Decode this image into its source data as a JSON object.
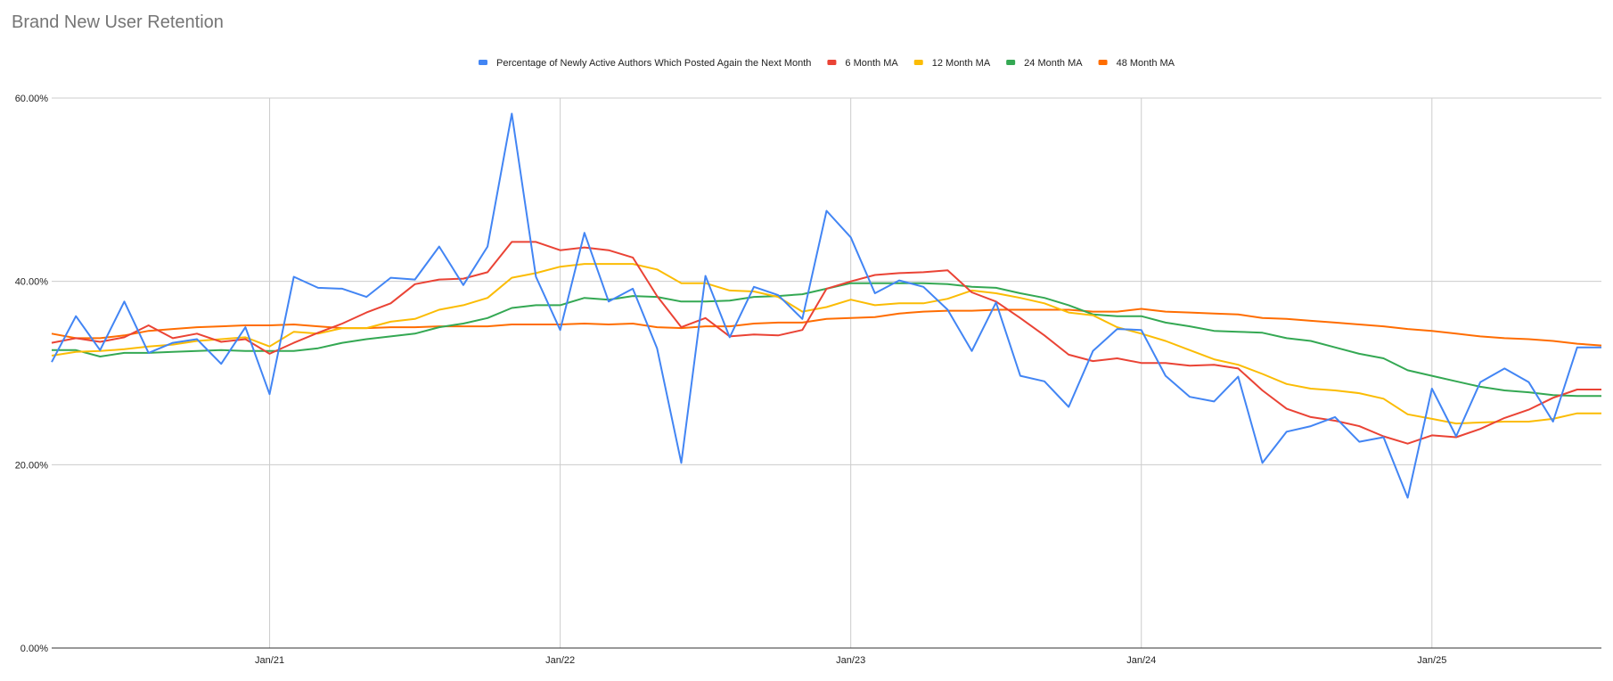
{
  "chart_data": {
    "type": "line",
    "title": "Brand New User Retention",
    "xlabel": "",
    "ylabel": "",
    "ylim": [
      0,
      0.6
    ],
    "y_ticks": [
      "0.00%",
      "20.00%",
      "40.00%",
      "60.00%"
    ],
    "x_ticks": [
      {
        "label": "Jan/21",
        "date": "2021-01-01"
      },
      {
        "label": "Jan/22",
        "date": "2022-01-01"
      },
      {
        "label": "Jan/23",
        "date": "2023-01-01"
      },
      {
        "label": "Jan/24",
        "date": "2024-01-01"
      },
      {
        "label": "Jan/25",
        "date": "2025-01-01"
      }
    ],
    "x_start": "2020-04",
    "x_end": "2025-08",
    "grid": true,
    "legend_position": "top",
    "x": [
      "2020-04",
      "2020-05",
      "2020-06",
      "2020-07",
      "2020-08",
      "2020-09",
      "2020-10",
      "2020-11",
      "2020-12",
      "2021-01",
      "2021-02",
      "2021-03",
      "2021-04",
      "2021-05",
      "2021-06",
      "2021-07",
      "2021-08",
      "2021-09",
      "2021-10",
      "2021-11",
      "2021-12",
      "2022-01",
      "2022-02",
      "2022-03",
      "2022-04",
      "2022-05",
      "2022-06",
      "2022-07",
      "2022-08",
      "2022-09",
      "2022-10",
      "2022-11",
      "2022-12",
      "2023-01",
      "2023-02",
      "2023-03",
      "2023-04",
      "2023-05",
      "2023-06",
      "2023-07",
      "2023-08",
      "2023-09",
      "2023-10",
      "2023-11",
      "2023-12",
      "2024-01",
      "2024-02",
      "2024-03",
      "2024-04",
      "2024-05",
      "2024-06",
      "2024-07",
      "2024-08",
      "2024-09",
      "2024-10",
      "2024-11",
      "2024-12",
      "2025-01",
      "2025-02",
      "2025-03",
      "2025-04",
      "2025-05",
      "2025-06",
      "2025-07",
      "2025-08"
    ],
    "series": [
      {
        "name": "Percentage of Newly Active Authors Which Posted Again the Next Month",
        "color": "#4285f4",
        "values": [
          0.312,
          0.362,
          0.325,
          0.378,
          0.322,
          0.333,
          0.337,
          0.31,
          0.35,
          0.277,
          0.405,
          0.393,
          0.392,
          0.383,
          0.404,
          0.402,
          0.438,
          0.396,
          0.438,
          0.583,
          0.405,
          0.347,
          0.453,
          0.378,
          0.392,
          0.327,
          0.202,
          0.406,
          0.339,
          0.394,
          0.385,
          0.359,
          0.477,
          0.448,
          0.387,
          0.401,
          0.394,
          0.369,
          0.324,
          0.377,
          0.297,
          0.291,
          0.263,
          0.324,
          0.348,
          0.347,
          0.297,
          0.274,
          0.269,
          0.296,
          0.202,
          0.236,
          0.242,
          0.252,
          0.225,
          0.23,
          0.164,
          0.283,
          0.231,
          0.29,
          0.305,
          0.29,
          0.247,
          0.328,
          0.328
        ]
      },
      {
        "name": "6 Month MA",
        "color": "#ea4335",
        "values": [
          0.333,
          0.338,
          0.334,
          0.339,
          0.352,
          0.338,
          0.343,
          0.334,
          0.337,
          0.321,
          0.333,
          0.344,
          0.354,
          0.366,
          0.376,
          0.397,
          0.402,
          0.403,
          0.41,
          0.443,
          0.443,
          0.434,
          0.437,
          0.434,
          0.426,
          0.384,
          0.35,
          0.36,
          0.34,
          0.342,
          0.341,
          0.347,
          0.392,
          0.4,
          0.407,
          0.409,
          0.41,
          0.412,
          0.388,
          0.378,
          0.36,
          0.341,
          0.32,
          0.313,
          0.316,
          0.311,
          0.311,
          0.308,
          0.309,
          0.305,
          0.281,
          0.261,
          0.252,
          0.248,
          0.242,
          0.231,
          0.223,
          0.232,
          0.23,
          0.239,
          0.251,
          0.26,
          0.273,
          0.282,
          0.282
        ]
      },
      {
        "name": "12 Month MA",
        "color": "#fbbc04",
        "values": [
          0.319,
          0.323,
          0.324,
          0.326,
          0.329,
          0.331,
          0.335,
          0.337,
          0.339,
          0.329,
          0.345,
          0.343,
          0.349,
          0.349,
          0.356,
          0.359,
          0.369,
          0.374,
          0.382,
          0.404,
          0.409,
          0.416,
          0.419,
          0.419,
          0.419,
          0.413,
          0.398,
          0.398,
          0.39,
          0.389,
          0.383,
          0.367,
          0.372,
          0.38,
          0.374,
          0.376,
          0.376,
          0.381,
          0.39,
          0.387,
          0.382,
          0.376,
          0.366,
          0.363,
          0.35,
          0.343,
          0.335,
          0.325,
          0.315,
          0.309,
          0.299,
          0.288,
          0.283,
          0.281,
          0.278,
          0.272,
          0.255,
          0.25,
          0.245,
          0.246,
          0.247,
          0.247,
          0.25,
          0.256,
          0.256
        ]
      },
      {
        "name": "24 Month MA",
        "color": "#34a853",
        "values": [
          0.325,
          0.325,
          0.318,
          0.322,
          0.322,
          0.323,
          0.324,
          0.325,
          0.324,
          0.324,
          0.324,
          0.327,
          0.333,
          0.337,
          0.34,
          0.343,
          0.35,
          0.354,
          0.36,
          0.371,
          0.374,
          0.374,
          0.382,
          0.38,
          0.384,
          0.383,
          0.378,
          0.378,
          0.379,
          0.383,
          0.384,
          0.386,
          0.392,
          0.398,
          0.398,
          0.398,
          0.398,
          0.397,
          0.394,
          0.393,
          0.387,
          0.382,
          0.374,
          0.364,
          0.362,
          0.362,
          0.355,
          0.351,
          0.346,
          0.345,
          0.344,
          0.338,
          0.335,
          0.328,
          0.321,
          0.316,
          0.303,
          0.297,
          0.291,
          0.285,
          0.281,
          0.279,
          0.276,
          0.275,
          0.275
        ]
      },
      {
        "name": "48 Month MA",
        "color": "#ff6d01",
        "values": [
          0.343,
          0.338,
          0.338,
          0.341,
          0.346,
          0.348,
          0.35,
          0.351,
          0.352,
          0.352,
          0.353,
          0.351,
          0.349,
          0.349,
          0.35,
          0.35,
          0.351,
          0.351,
          0.351,
          0.353,
          0.353,
          0.353,
          0.354,
          0.353,
          0.354,
          0.35,
          0.349,
          0.351,
          0.351,
          0.354,
          0.355,
          0.355,
          0.359,
          0.36,
          0.361,
          0.365,
          0.367,
          0.368,
          0.368,
          0.369,
          0.369,
          0.369,
          0.369,
          0.367,
          0.367,
          0.37,
          0.367,
          0.366,
          0.365,
          0.364,
          0.36,
          0.359,
          0.357,
          0.355,
          0.353,
          0.351,
          0.348,
          0.346,
          0.343,
          0.34,
          0.338,
          0.337,
          0.335,
          0.332,
          0.33
        ]
      }
    ]
  }
}
